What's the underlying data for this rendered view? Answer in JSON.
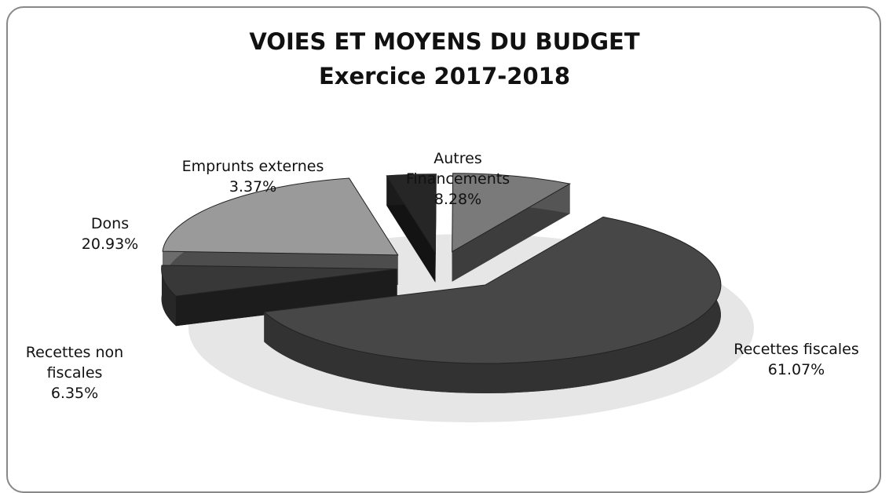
{
  "chart_data": {
    "type": "pie",
    "title": "VOIES ET MOYENS DU BUDGET",
    "subtitle": "Exercice 2017-2018",
    "categories": [
      "Recettes fiscales",
      "Recettes non fiscales",
      "Dons",
      "Emprunts externes",
      "Autres Financements"
    ],
    "values": [
      61.07,
      6.35,
      20.93,
      3.37,
      8.28
    ],
    "value_labels": [
      "61.07%",
      "6.35%",
      "20.93%",
      "3.37%",
      "8.28%"
    ],
    "colors": [
      "#474747",
      "#383838",
      "#9a9a9a",
      "#262626",
      "#7a7a7a"
    ]
  }
}
